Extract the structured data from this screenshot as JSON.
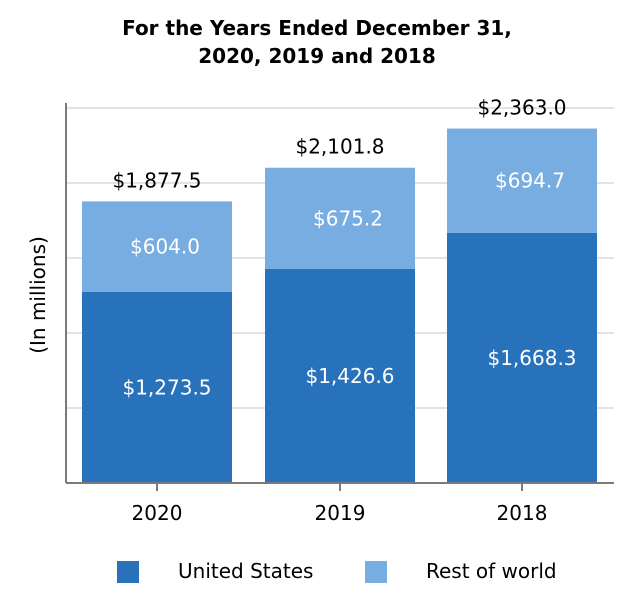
{
  "colors": {
    "us": "#2872bb",
    "row": "#78ade2",
    "grid": "#e3e3e3",
    "axis": "#7a7a7a"
  },
  "chart_data": {
    "type": "bar",
    "stacked": true,
    "title": "For the Years Ended December 31,",
    "subtitle": "2020, 2019 and 2018",
    "ylabel": "(In millions)",
    "categories": [
      "2020",
      "2019",
      "2018"
    ],
    "series": [
      {
        "name": "United States",
        "values": [
          1273.5,
          1426.6,
          1668.3
        ],
        "labels": [
          "$1,273.5",
          "$1,426.6",
          "$1,668.3"
        ],
        "color": "#2872bb"
      },
      {
        "name": "Rest of world",
        "values": [
          604.0,
          675.2,
          694.7
        ],
        "labels": [
          "$604.0",
          "$675.2",
          "$694.7"
        ],
        "color": "#78ade2"
      }
    ],
    "totals": [
      1877.5,
      2101.8,
      2363.0
    ],
    "total_labels": [
      "$1,877.5",
      "$2,101.8",
      "$2,363.0"
    ],
    "ylim": [
      0,
      2500
    ],
    "grid": true,
    "legend_position": "bottom"
  }
}
